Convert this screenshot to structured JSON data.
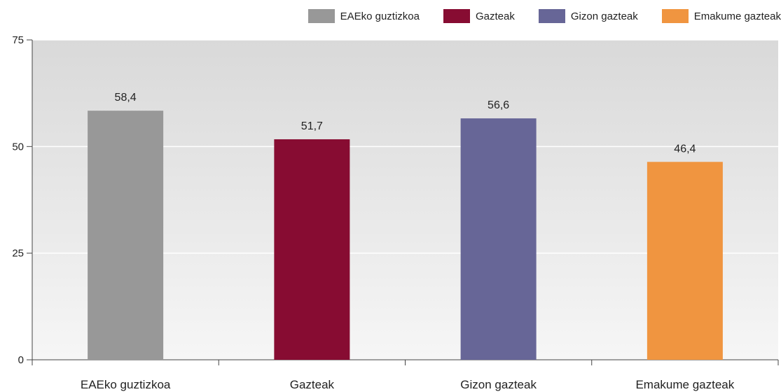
{
  "chart_data": {
    "type": "bar",
    "categories": [
      "EAEko guztizkoa",
      "Gazteak",
      "Gizon gazteak",
      "Emakume gazteak"
    ],
    "values": [
      58.4,
      51.7,
      56.6,
      46.4
    ],
    "value_labels": [
      "58,4",
      "51,7",
      "56,6",
      "46,4"
    ],
    "colors": [
      "#989898",
      "#870c32",
      "#676697",
      "#f09540"
    ],
    "legend": [
      "EAEko guztizkoa",
      "Gazteak",
      "Gizon gazteak",
      "Emakume gazteak"
    ],
    "legend_position": "top-right",
    "ylim": [
      0,
      75
    ],
    "yticks": [
      0,
      25,
      50,
      75
    ],
    "ytick_labels": [
      "0",
      "25",
      "50",
      "75"
    ],
    "grid": true,
    "title": "",
    "xlabel": "",
    "ylabel": ""
  }
}
